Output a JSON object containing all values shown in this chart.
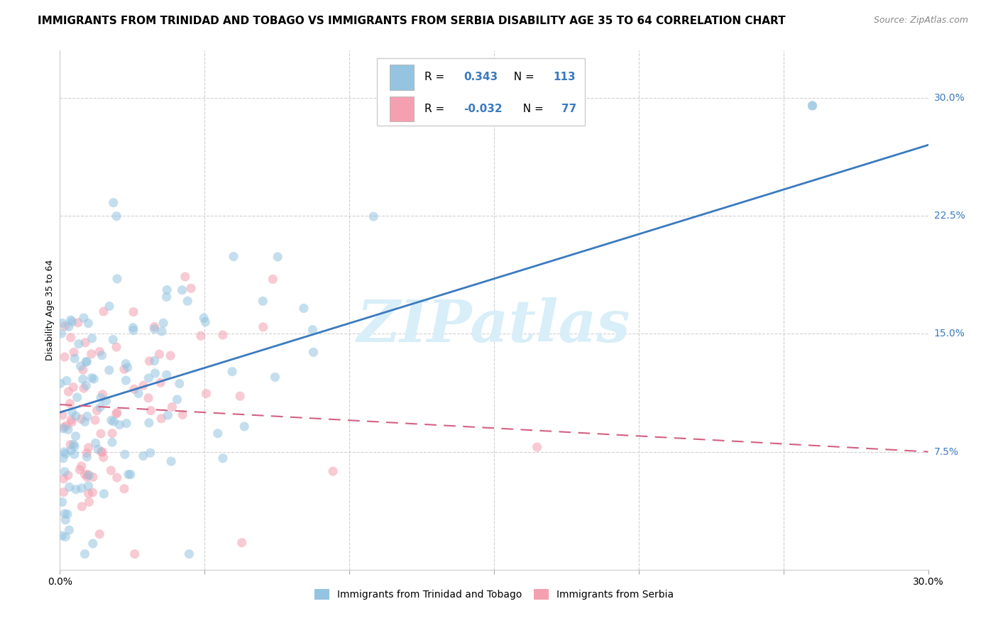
{
  "title": "IMMIGRANTS FROM TRINIDAD AND TOBAGO VS IMMIGRANTS FROM SERBIA DISABILITY AGE 35 TO 64 CORRELATION CHART",
  "source": "Source: ZipAtlas.com",
  "ylabel": "Disability Age 35 to 64",
  "yticks": [
    "7.5%",
    "15.0%",
    "22.5%",
    "30.0%"
  ],
  "ytick_values": [
    0.075,
    0.15,
    0.225,
    0.3
  ],
  "xmin": 0.0,
  "xmax": 0.3,
  "ymin": 0.0,
  "ymax": 0.33,
  "blue_R": 0.343,
  "blue_N": 113,
  "pink_R": -0.032,
  "pink_N": 77,
  "blue_color": "#94c4e0",
  "pink_color": "#f4a0b0",
  "blue_line_color": "#3a7abf",
  "pink_line_color": "#d46080",
  "watermark_text": "ZIPatlas",
  "legend_label_blue": "Immigrants from Trinidad and Tobago",
  "legend_label_pink": "Immigrants from Serbia",
  "blue_line_y0": 0.1,
  "blue_line_y1": 0.27,
  "pink_line_y0": 0.105,
  "pink_line_y1": 0.075,
  "grid_color": "#d0d0d0",
  "bg_color": "#ffffff",
  "watermark_color": "#d8eef8",
  "title_fontsize": 11,
  "axis_label_fontsize": 9,
  "tick_fontsize": 10,
  "legend_fontsize": 10,
  "source_fontsize": 9,
  "scatter_size": 90,
  "scatter_alpha": 0.55
}
